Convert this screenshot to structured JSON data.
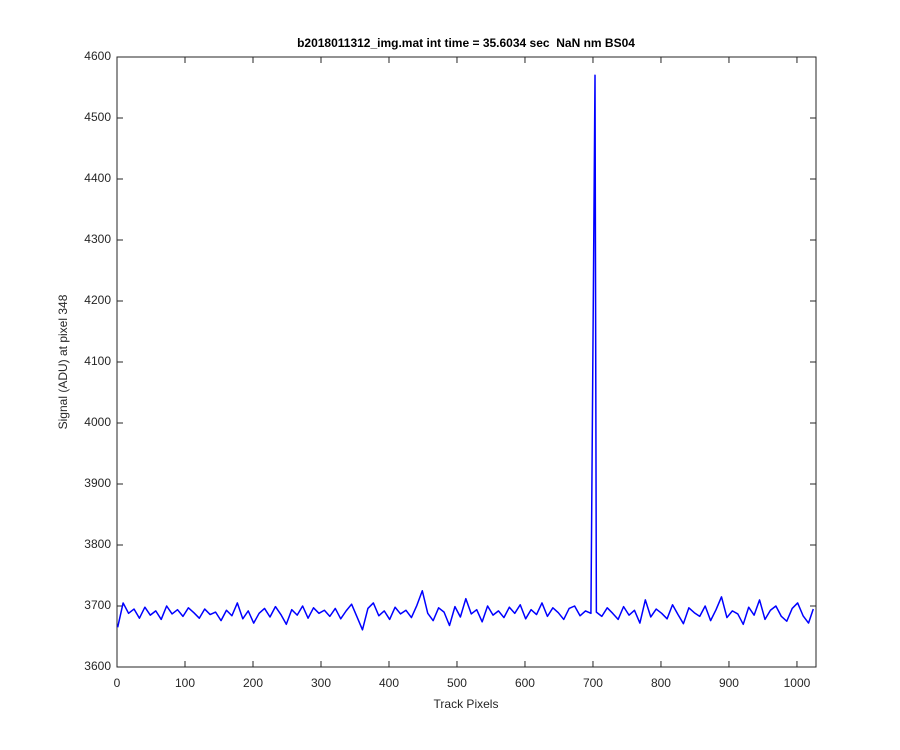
{
  "chart_data": {
    "type": "line",
    "title": "b2018011312_img.mat int time = 35.6034 sec  NaN nm BS04",
    "x_label": "Track Pixels",
    "y_label": "Signal (ADU) at pixel 348",
    "xlim": [
      0,
      1028
    ],
    "ylim": [
      3600,
      4600
    ],
    "xticks": [
      0,
      100,
      200,
      300,
      400,
      500,
      600,
      700,
      800,
      900,
      1000
    ],
    "yticks": [
      3600,
      3700,
      3800,
      3900,
      4000,
      4100,
      4200,
      4300,
      4400,
      4500,
      4600
    ],
    "series": [
      {
        "color": "#0000ff",
        "x": [
          1,
          9,
          17,
          25,
          33,
          41,
          49,
          57,
          65,
          73,
          81,
          89,
          97,
          105,
          113,
          121,
          129,
          137,
          145,
          153,
          161,
          169,
          177,
          185,
          193,
          201,
          209,
          217,
          225,
          233,
          241,
          249,
          257,
          265,
          273,
          281,
          289,
          297,
          305,
          313,
          321,
          329,
          337,
          345,
          353,
          361,
          369,
          377,
          385,
          393,
          401,
          409,
          417,
          425,
          433,
          441,
          449,
          457,
          465,
          473,
          481,
          489,
          497,
          505,
          513,
          521,
          529,
          537,
          545,
          553,
          561,
          569,
          577,
          585,
          593,
          601,
          609,
          617,
          625,
          633,
          641,
          649,
          657,
          665,
          673,
          681,
          689,
          697,
          703,
          705,
          713,
          721,
          729,
          737,
          745,
          753,
          761,
          769,
          777,
          785,
          793,
          801,
          809,
          817,
          825,
          833,
          841,
          849,
          857,
          865,
          873,
          881,
          889,
          897,
          905,
          913,
          921,
          929,
          937,
          945,
          953,
          961,
          969,
          977,
          985,
          993,
          1001,
          1009,
          1017,
          1024
        ],
        "values": [
          3665,
          3705,
          3688,
          3695,
          3680,
          3698,
          3685,
          3692,
          3678,
          3700,
          3687,
          3694,
          3683,
          3697,
          3689,
          3680,
          3695,
          3686,
          3690,
          3676,
          3693,
          3684,
          3705,
          3679,
          3692,
          3672,
          3688,
          3696,
          3682,
          3699,
          3686,
          3670,
          3694,
          3685,
          3700,
          3680,
          3697,
          3688,
          3693,
          3683,
          3696,
          3679,
          3692,
          3703,
          3682,
          3661,
          3696,
          3705,
          3684,
          3692,
          3678,
          3698,
          3687,
          3693,
          3681,
          3701,
          3725,
          3688,
          3676,
          3697,
          3690,
          3668,
          3699,
          3682,
          3712,
          3687,
          3694,
          3674,
          3700,
          3685,
          3692,
          3681,
          3698,
          3688,
          3702,
          3679,
          3694,
          3686,
          3705,
          3683,
          3697,
          3689,
          3678,
          3696,
          3700,
          3684,
          3692,
          3688,
          4570,
          3690,
          3683,
          3697,
          3688,
          3678,
          3699,
          3685,
          3693,
          3672,
          3710,
          3682,
          3695,
          3688,
          3679,
          3702,
          3686,
          3671,
          3697,
          3689,
          3683,
          3700,
          3676,
          3694,
          3715,
          3681,
          3692,
          3687,
          3670,
          3698,
          3685,
          3710,
          3678,
          3693,
          3700,
          3683,
          3675,
          3696,
          3705,
          3684,
          3672,
          3695
        ]
      }
    ]
  }
}
